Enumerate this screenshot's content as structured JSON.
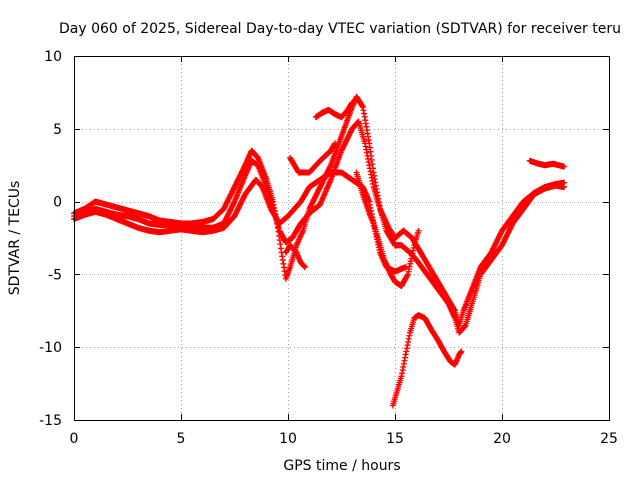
{
  "chart_data": {
    "type": "scatter",
    "title": "Day 060 of 2025, Sidereal Day-to-day VTEC variation (SDTVAR) for receiver teru",
    "xlabel": "GPS time / hours",
    "ylabel": "SDTVAR / TECUs",
    "xlim": [
      0,
      25
    ],
    "ylim": [
      -15,
      10
    ],
    "xticks": [
      0,
      5,
      10,
      15,
      20,
      25
    ],
    "yticks": [
      -15,
      -10,
      -5,
      0,
      5,
      10
    ],
    "xtick_labels": [
      "0",
      "5",
      "10",
      "15",
      "20",
      "25"
    ],
    "ytick_labels": [
      "-15",
      "-10",
      "-5",
      "0",
      "5",
      "10"
    ],
    "grid": true,
    "marker": "plus",
    "color": "#ff0000",
    "series": [
      {
        "points": [
          [
            0,
            -1.0
          ],
          [
            0.5,
            -0.8
          ],
          [
            1.0,
            -0.5
          ],
          [
            1.5,
            -0.7
          ],
          [
            2.0,
            -0.9
          ],
          [
            2.5,
            -1.0
          ],
          [
            3.0,
            -1.2
          ],
          [
            3.5,
            -1.5
          ],
          [
            4.0,
            -1.6
          ],
          [
            4.5,
            -1.6
          ],
          [
            5.0,
            -1.6
          ],
          [
            5.5,
            -1.7
          ],
          [
            6.0,
            -1.8
          ],
          [
            6.5,
            -1.8
          ],
          [
            7.0,
            -1.5
          ],
          [
            7.5,
            0.0
          ],
          [
            8.0,
            1.8
          ],
          [
            8.3,
            2.8
          ],
          [
            8.6,
            2.5
          ],
          [
            9.0,
            1.0
          ],
          [
            9.3,
            -0.5
          ],
          [
            9.6,
            -2.0
          ],
          [
            9.9,
            -2.8
          ],
          [
            10.2,
            -2.5
          ],
          [
            10.6,
            -1.5
          ],
          [
            11.0,
            -0.8
          ],
          [
            11.5,
            -0.2
          ],
          [
            12.0,
            1.5
          ],
          [
            12.5,
            3.5
          ],
          [
            13.0,
            5.0
          ],
          [
            13.3,
            5.5
          ],
          [
            13.6,
            4.0
          ],
          [
            14.0,
            1.0
          ],
          [
            14.3,
            -0.5
          ],
          [
            14.7,
            -1.8
          ],
          [
            15.0,
            -2.5
          ],
          [
            15.4,
            -2.0
          ],
          [
            15.8,
            -2.5
          ],
          [
            16.2,
            -3.5
          ],
          [
            16.6,
            -4.5
          ],
          [
            17.0,
            -5.5
          ],
          [
            17.4,
            -6.5
          ],
          [
            17.8,
            -7.5
          ],
          [
            18.0,
            -8.5
          ],
          [
            18.2,
            -7.5
          ],
          [
            18.6,
            -6.0
          ],
          [
            19.0,
            -4.5
          ],
          [
            19.5,
            -3.5
          ],
          [
            20.0,
            -2.0
          ],
          [
            20.5,
            -1.0
          ],
          [
            21.0,
            0.0
          ],
          [
            21.5,
            0.6
          ],
          [
            22.0,
            1.0
          ],
          [
            22.5,
            1.2
          ],
          [
            22.9,
            1.3
          ]
        ]
      },
      {
        "points": [
          [
            0,
            -0.8
          ],
          [
            0.5,
            -0.5
          ],
          [
            1.0,
            0.0
          ],
          [
            1.5,
            -0.2
          ],
          [
            2.0,
            -0.4
          ],
          [
            2.5,
            -0.6
          ],
          [
            3.0,
            -0.8
          ],
          [
            3.5,
            -1.0
          ],
          [
            4.0,
            -1.3
          ],
          [
            4.5,
            -1.4
          ],
          [
            5.0,
            -1.5
          ],
          [
            5.5,
            -1.5
          ],
          [
            6.0,
            -1.4
          ],
          [
            6.5,
            -1.2
          ],
          [
            7.0,
            -0.5
          ],
          [
            7.5,
            1.0
          ],
          [
            8.0,
            2.5
          ],
          [
            8.3,
            3.5
          ],
          [
            8.6,
            3.0
          ],
          [
            9.0,
            1.5
          ],
          [
            9.3,
            0.0
          ],
          [
            9.5,
            -1.5
          ],
          [
            9.7,
            -3.5
          ],
          [
            9.9,
            -5.3
          ],
          [
            10.1,
            -4.5
          ],
          [
            10.4,
            -3.0
          ],
          [
            10.7,
            -2.0
          ],
          [
            11.0,
            -0.5
          ],
          [
            11.5,
            1.0
          ],
          [
            12.0,
            2.5
          ],
          [
            12.5,
            4.5
          ],
          [
            13.0,
            6.5
          ],
          [
            13.2,
            7.2
          ],
          [
            13.5,
            6.5
          ],
          [
            13.8,
            4.0
          ],
          [
            14.0,
            2.0
          ],
          [
            14.3,
            -0.5
          ],
          [
            14.6,
            -2.0
          ],
          [
            15.0,
            -3.0
          ],
          [
            15.3,
            -3.0
          ],
          [
            15.7,
            -3.5
          ],
          [
            16.0,
            -4.0
          ],
          [
            16.5,
            -5.0
          ],
          [
            17.0,
            -6.0
          ],
          [
            17.5,
            -7.0
          ],
          [
            17.8,
            -8.0
          ],
          [
            18.0,
            -9.0
          ],
          [
            18.3,
            -8.5
          ],
          [
            18.6,
            -7.0
          ],
          [
            19.0,
            -5.0
          ],
          [
            19.5,
            -4.0
          ],
          [
            20.0,
            -3.0
          ],
          [
            20.5,
            -1.5
          ],
          [
            21.0,
            -0.5
          ],
          [
            21.5,
            0.5
          ],
          [
            22.0,
            0.9
          ],
          [
            22.5,
            1.1
          ],
          [
            22.9,
            1.0
          ]
        ]
      },
      {
        "points": [
          [
            0,
            -1.2
          ],
          [
            0.5,
            -0.9
          ],
          [
            1.0,
            -0.7
          ],
          [
            1.5,
            -0.9
          ],
          [
            2.0,
            -1.2
          ],
          [
            2.5,
            -1.5
          ],
          [
            3.0,
            -1.8
          ],
          [
            3.5,
            -2.0
          ],
          [
            4.0,
            -2.1
          ],
          [
            4.5,
            -2.0
          ],
          [
            5.0,
            -1.9
          ],
          [
            5.5,
            -2.0
          ],
          [
            6.0,
            -2.1
          ],
          [
            6.5,
            -2.0
          ],
          [
            7.0,
            -1.8
          ],
          [
            7.5,
            -1.0
          ],
          [
            8.0,
            0.5
          ],
          [
            8.5,
            1.5
          ],
          [
            8.8,
            1.0
          ],
          [
            9.2,
            -0.5
          ],
          [
            9.6,
            -1.5
          ],
          [
            10.0,
            -1.0
          ],
          [
            10.3,
            -0.5
          ],
          [
            10.6,
            0.0
          ],
          [
            11.0,
            1.0
          ],
          [
            11.5,
            1.5
          ],
          [
            12.0,
            2.0
          ],
          [
            12.5,
            2.0
          ],
          [
            13.0,
            1.5
          ],
          [
            13.5,
            1.0
          ],
          [
            13.8,
            0.0
          ],
          [
            14.0,
            -1.5
          ],
          [
            14.3,
            -3.0
          ],
          [
            14.5,
            -4.0
          ],
          [
            14.8,
            -5.0
          ],
          [
            15.0,
            -5.5
          ],
          [
            15.3,
            -5.8
          ],
          [
            15.6,
            -5.0
          ],
          [
            15.9,
            -3.0
          ],
          [
            16.1,
            -2.0
          ]
        ]
      },
      {
        "points": [
          [
            9.9,
            -3.5
          ],
          [
            10.1,
            -3.0
          ],
          [
            10.4,
            -3.5
          ],
          [
            10.6,
            -4.2
          ],
          [
            10.8,
            -4.5
          ]
        ]
      },
      {
        "points": [
          [
            10.1,
            3.0
          ],
          [
            10.5,
            2.0
          ],
          [
            11.0,
            2.0
          ],
          [
            11.5,
            2.8
          ],
          [
            12.0,
            3.5
          ],
          [
            12.2,
            4.0
          ]
        ]
      },
      {
        "points": [
          [
            11.3,
            5.8
          ],
          [
            11.6,
            6.1
          ],
          [
            11.9,
            6.3
          ],
          [
            12.2,
            6.0
          ],
          [
            12.5,
            5.8
          ],
          [
            12.8,
            6.3
          ],
          [
            13.0,
            6.8
          ]
        ]
      },
      {
        "points": [
          [
            13.2,
            2.0
          ],
          [
            13.5,
            0.5
          ],
          [
            13.8,
            -0.8
          ],
          [
            14.0,
            -1.5
          ],
          [
            14.3,
            -3.5
          ],
          [
            14.6,
            -4.5
          ],
          [
            15.0,
            -4.8
          ],
          [
            15.5,
            -4.5
          ]
        ]
      },
      {
        "points": [
          [
            14.9,
            -14.0
          ],
          [
            15.1,
            -13.0
          ],
          [
            15.3,
            -12.0
          ],
          [
            15.5,
            -10.5
          ],
          [
            15.7,
            -9.0
          ],
          [
            15.9,
            -8.0
          ],
          [
            16.1,
            -7.8
          ],
          [
            16.4,
            -8.0
          ],
          [
            16.7,
            -8.8
          ],
          [
            17.0,
            -9.5
          ],
          [
            17.3,
            -10.3
          ],
          [
            17.6,
            -11.0
          ],
          [
            17.8,
            -11.2
          ],
          [
            18.0,
            -10.5
          ],
          [
            18.1,
            -10.3
          ]
        ]
      },
      {
        "points": [
          [
            21.3,
            2.8
          ],
          [
            21.7,
            2.6
          ],
          [
            22.0,
            2.5
          ],
          [
            22.4,
            2.6
          ],
          [
            22.9,
            2.4
          ]
        ]
      }
    ]
  }
}
